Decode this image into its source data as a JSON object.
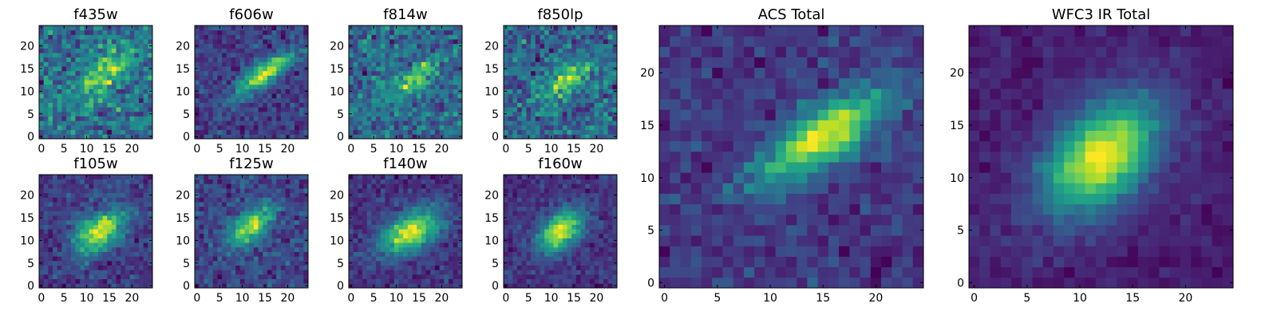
{
  "figure": {
    "background": "#ffffff",
    "colormap": "viridis"
  },
  "chart_data": [
    {
      "type": "heatmap",
      "title": "f435w",
      "grid_size": 25,
      "xlim": [
        0,
        24
      ],
      "ylim": [
        0,
        24
      ],
      "xticks": [
        "0",
        "5",
        "10",
        "15",
        "20"
      ],
      "yticks": [
        "0",
        "5",
        "10",
        "15",
        "20"
      ],
      "blob": {
        "cx": 14,
        "cy": 14,
        "sx": 5,
        "sy": 2.5,
        "angle_deg": 35,
        "amp": 0.25
      },
      "noise": 0.45,
      "seed": 11
    },
    {
      "type": "heatmap",
      "title": "f606w",
      "grid_size": 25,
      "xlim": [
        0,
        24
      ],
      "ylim": [
        0,
        24
      ],
      "xticks": [
        "0",
        "5",
        "10",
        "15",
        "20"
      ],
      "yticks": [
        "0",
        "5",
        "10",
        "15",
        "20"
      ],
      "blob": {
        "cx": 15,
        "cy": 14,
        "sx": 5,
        "sy": 1.6,
        "angle_deg": 35,
        "amp": 0.55
      },
      "noise": 0.35,
      "seed": 22
    },
    {
      "type": "heatmap",
      "title": "f814w",
      "grid_size": 25,
      "xlim": [
        0,
        24
      ],
      "ylim": [
        0,
        24
      ],
      "xticks": [
        "0",
        "5",
        "10",
        "15",
        "20"
      ],
      "yticks": [
        "0",
        "5",
        "10",
        "15",
        "20"
      ],
      "blob": {
        "cx": 14,
        "cy": 13,
        "sx": 4,
        "sy": 1.5,
        "angle_deg": 35,
        "amp": 0.3
      },
      "noise": 0.45,
      "seed": 33
    },
    {
      "type": "heatmap",
      "title": "f850lp",
      "grid_size": 25,
      "xlim": [
        0,
        24
      ],
      "ylim": [
        0,
        24
      ],
      "xticks": [
        "0",
        "5",
        "10",
        "15",
        "20"
      ],
      "yticks": [
        "0",
        "5",
        "10",
        "15",
        "20"
      ],
      "blob": {
        "cx": 14,
        "cy": 13,
        "sx": 4,
        "sy": 2,
        "angle_deg": 35,
        "amp": 0.3
      },
      "noise": 0.45,
      "seed": 44
    },
    {
      "type": "heatmap",
      "title": "f105w",
      "grid_size": 25,
      "xlim": [
        0,
        24
      ],
      "ylim": [
        0,
        24
      ],
      "xticks": [
        "0",
        "5",
        "10",
        "15",
        "20"
      ],
      "yticks": [
        "0",
        "5",
        "10",
        "15",
        "20"
      ],
      "blob": {
        "cx": 13,
        "cy": 12,
        "sx": 4.5,
        "sy": 2.5,
        "angle_deg": 40,
        "amp": 0.6
      },
      "noise": 0.35,
      "seed": 55
    },
    {
      "type": "heatmap",
      "title": "f125w",
      "grid_size": 25,
      "xlim": [
        0,
        24
      ],
      "ylim": [
        0,
        24
      ],
      "xticks": [
        "0",
        "5",
        "10",
        "15",
        "20"
      ],
      "yticks": [
        "0",
        "5",
        "10",
        "15",
        "20"
      ],
      "blob": {
        "cx": 12,
        "cy": 13,
        "sx": 4,
        "sy": 2,
        "angle_deg": 40,
        "amp": 0.5
      },
      "noise": 0.35,
      "seed": 66
    },
    {
      "type": "heatmap",
      "title": "f140w",
      "grid_size": 25,
      "xlim": [
        0,
        24
      ],
      "ylim": [
        0,
        24
      ],
      "xticks": [
        "0",
        "5",
        "10",
        "15",
        "20"
      ],
      "yticks": [
        "0",
        "5",
        "10",
        "15",
        "20"
      ],
      "blob": {
        "cx": 13,
        "cy": 12,
        "sx": 5,
        "sy": 2.8,
        "angle_deg": 30,
        "amp": 0.6
      },
      "noise": 0.3,
      "seed": 77
    },
    {
      "type": "heatmap",
      "title": "f160w",
      "grid_size": 25,
      "xlim": [
        0,
        24
      ],
      "ylim": [
        0,
        24
      ],
      "xticks": [
        "0",
        "5",
        "10",
        "15",
        "20"
      ],
      "yticks": [
        "0",
        "5",
        "10",
        "15",
        "20"
      ],
      "blob": {
        "cx": 12,
        "cy": 12,
        "sx": 4,
        "sy": 2.5,
        "angle_deg": 45,
        "amp": 0.7
      },
      "noise": 0.3,
      "seed": 88
    },
    {
      "type": "heatmap",
      "title": "ACS Total",
      "grid_size": 25,
      "xlim": [
        0,
        24
      ],
      "ylim": [
        0,
        24
      ],
      "xticks": [
        "0",
        "5",
        "10",
        "15",
        "20"
      ],
      "yticks": [
        "0",
        "5",
        "10",
        "15",
        "20"
      ],
      "blob": {
        "cx": 15,
        "cy": 14,
        "sx": 5,
        "sy": 1.8,
        "angle_deg": 35,
        "amp": 0.55
      },
      "noise": 0.28,
      "seed": 99
    },
    {
      "type": "heatmap",
      "title": "WFC3 IR Total",
      "grid_size": 25,
      "xlim": [
        0,
        24
      ],
      "ylim": [
        0,
        24
      ],
      "xticks": [
        "0",
        "5",
        "10",
        "15",
        "20"
      ],
      "yticks": [
        "0",
        "5",
        "10",
        "15",
        "20"
      ],
      "blob": {
        "cx": 12,
        "cy": 12,
        "sx": 4.5,
        "sy": 2.8,
        "angle_deg": 45,
        "amp": 0.75
      },
      "noise": 0.18,
      "seed": 111
    }
  ]
}
